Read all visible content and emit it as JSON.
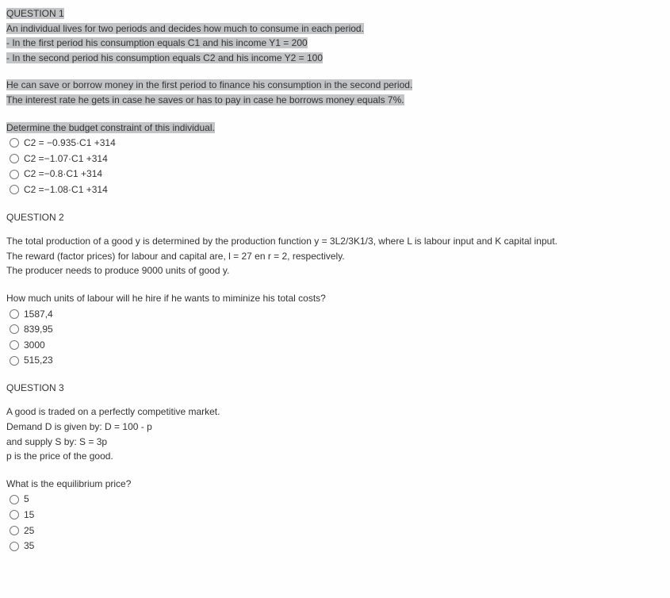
{
  "q1": {
    "title": "QUESTION 1",
    "intro1": "An individual lives for two periods and decides how much to consume in each period.",
    "intro2": "- In the first period his consumption equals C1 and his income Y1 = 200",
    "intro3": "- In the second period his consumption equals C2 and his income Y2 = 100",
    "intro4": "He can save or borrow money in the first period to finance his consumption in the second period.",
    "intro5": "The interest rate he gets in case he saves or has to pay in case he borrows money equals 7%.",
    "prompt": "Determine the budget constraint of this individual.",
    "options": [
      "C2 = −0.935·C1 +314",
      "C2 =−1.07·C1 +314",
      "C2 =−0.8·C1 +314",
      "C2 =−1.08·C1 +314"
    ]
  },
  "q2": {
    "title": "QUESTION 2",
    "intro1": "The total production of a good y is determined by the production function y = 3L2/3K1/3, where L is labour input and K capital input.",
    "intro2": "The reward (factor prices) for labour and capital are, l = 27 en r = 2, respectively.",
    "intro3": "The producer needs to produce 9000 units of good y.",
    "prompt": "How much units of labour will he hire if he wants to miminize his total costs?",
    "options": [
      "1587,4",
      "839,95",
      "3000",
      "515,23"
    ]
  },
  "q3": {
    "title": "QUESTION 3",
    "intro1": "A good is traded on a perfectly competitive market.",
    "intro2": "Demand D is given by: D = 100 - p",
    "intro3": "and supply S by: S = 3p",
    "intro4": "p is the price of the good.",
    "prompt": "What is the equilibrium price?",
    "options": [
      "5",
      "15",
      "25",
      "35"
    ]
  }
}
